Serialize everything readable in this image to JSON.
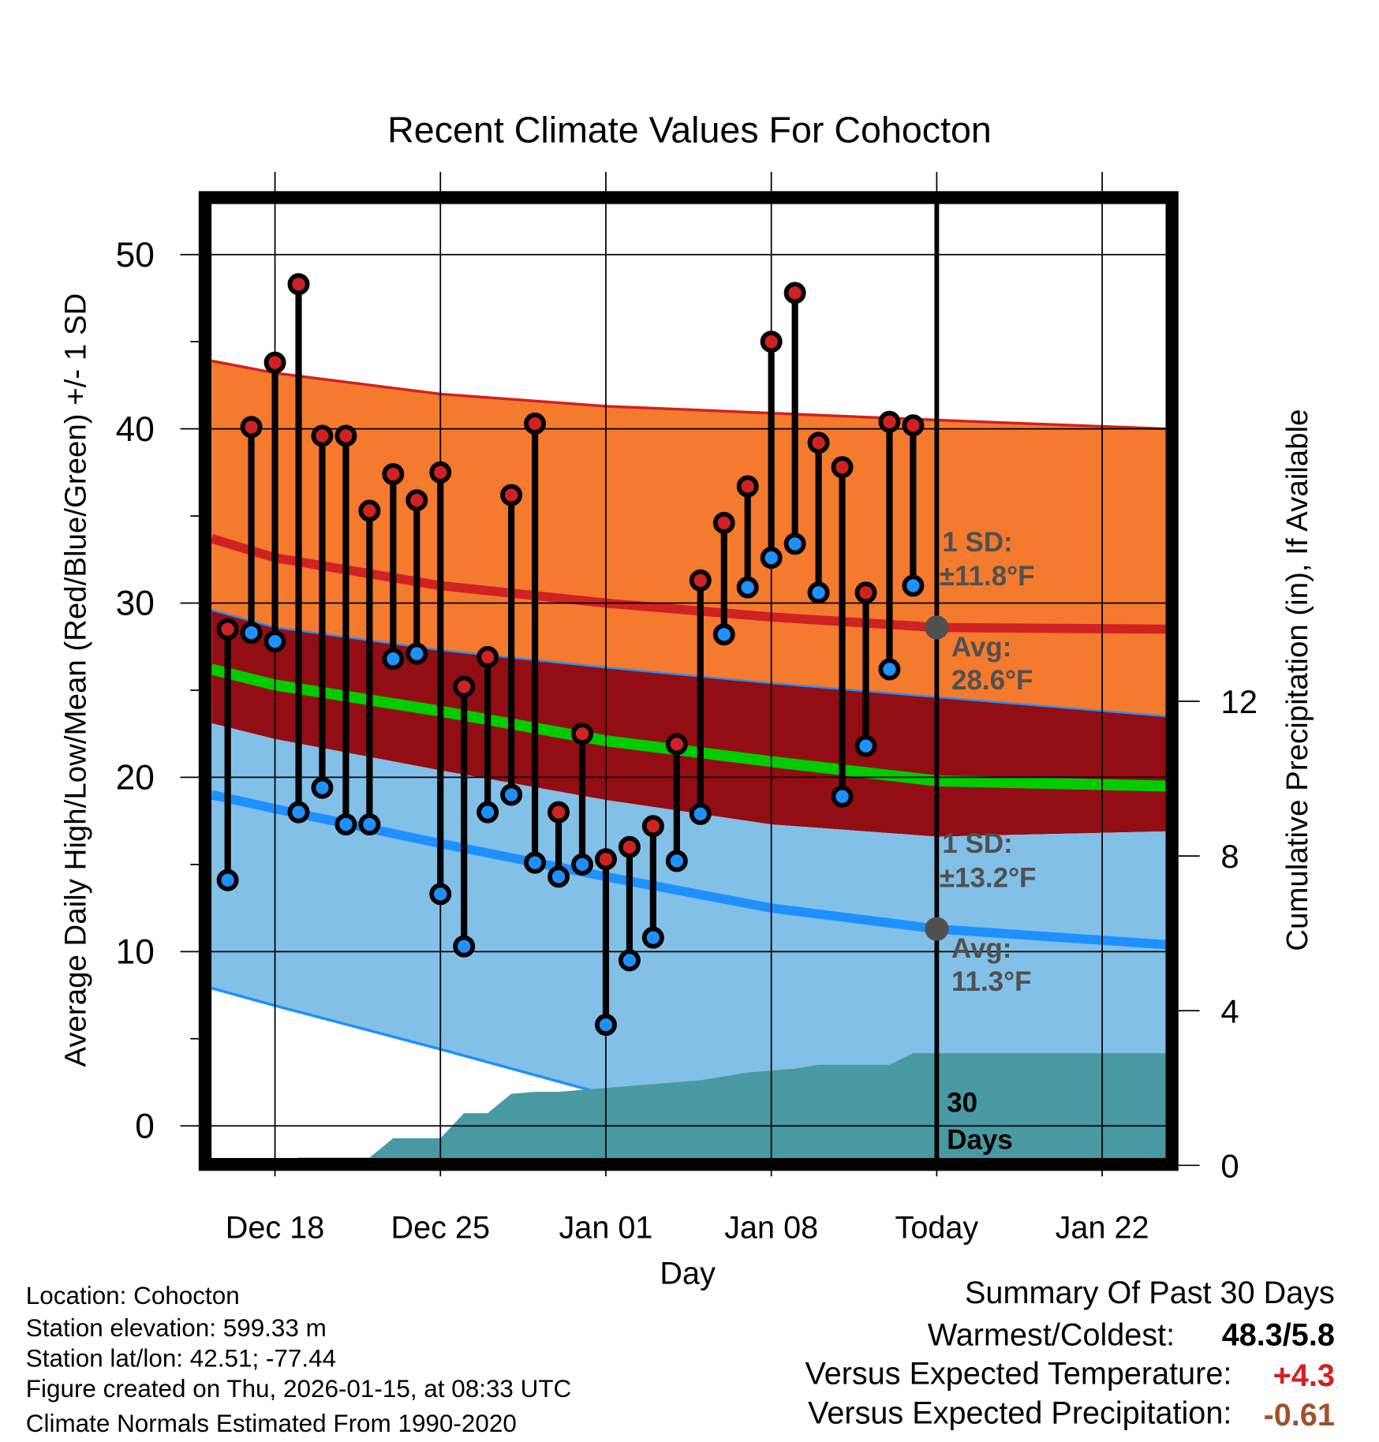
{
  "chart_data": {
    "type": "line",
    "title": "Recent Climate Values For Cohocton",
    "xlabel": "Day",
    "ylabel": "Average Daily High/Low/Mean (Red/Blue/Green) +/- 1 SD",
    "y2label": "Cumulative Precipitation (in), If Available",
    "ylim": [
      -1.85,
      52.9
    ],
    "y2lim": [
      0,
      12.5
    ],
    "yticks": [
      0,
      10,
      20,
      30,
      40,
      50
    ],
    "y2ticks": [
      0,
      4,
      8,
      12
    ],
    "xlim_days_from_dec18": [
      -2.68,
      37.7
    ],
    "xticks": [
      {
        "day": 0,
        "label": "Dec 18"
      },
      {
        "day": 7,
        "label": "Dec 25"
      },
      {
        "day": 14,
        "label": "Jan 01"
      },
      {
        "day": 21,
        "label": "Jan 08"
      },
      {
        "day": 28,
        "label": "Today"
      },
      {
        "day": 35,
        "label": "Jan 22"
      }
    ],
    "grid": true,
    "days": [
      "Dec 16",
      "Dec 17",
      "Dec 18",
      "Dec 19",
      "Dec 20",
      "Dec 21",
      "Dec 22",
      "Dec 23",
      "Dec 24",
      "Dec 25",
      "Dec 26",
      "Dec 27",
      "Dec 28",
      "Dec 29",
      "Dec 30",
      "Dec 31",
      "Jan 01",
      "Jan 02",
      "Jan 03",
      "Jan 04",
      "Jan 05",
      "Jan 06",
      "Jan 07",
      "Jan 08",
      "Jan 09",
      "Jan 10",
      "Jan 11",
      "Jan 12",
      "Jan 13",
      "Jan 14"
    ],
    "first_day_offset": -2,
    "series": [
      {
        "name": "Daily High",
        "values": [
          28.5,
          40.1,
          43.8,
          48.3,
          39.6,
          39.6,
          35.3,
          37.4,
          35.9,
          37.5,
          25.2,
          26.9,
          36.2,
          40.3,
          18.0,
          22.5,
          15.3,
          16.0,
          17.2,
          21.9,
          31.3,
          34.6,
          36.7,
          45.0,
          47.8,
          39.2,
          37.8,
          30.6,
          40.4,
          40.2
        ]
      },
      {
        "name": "Daily Low",
        "values": [
          14.1,
          28.3,
          27.8,
          18.0,
          19.4,
          17.3,
          17.3,
          26.8,
          27.1,
          13.3,
          10.3,
          18.0,
          19.0,
          15.1,
          14.3,
          15.0,
          5.8,
          9.5,
          10.8,
          15.2,
          17.9,
          28.2,
          30.9,
          32.6,
          33.4,
          30.6,
          18.9,
          21.8,
          26.2,
          31.0
        ]
      },
      {
        "name": "Cumulative Precipitation (in)",
        "values": [
          0,
          0,
          0,
          0.2,
          0.2,
          0.2,
          0.2,
          0.7,
          0.7,
          0.7,
          1.35,
          1.35,
          1.85,
          1.9,
          1.9,
          1.95,
          2.0,
          2.05,
          2.1,
          2.15,
          2.2,
          2.3,
          2.4,
          2.45,
          2.5,
          2.6,
          2.6,
          2.6,
          2.6,
          2.9
        ]
      }
    ],
    "normals": {
      "days_from_dec18": [
        -2.68,
        0,
        7,
        14,
        21,
        28,
        37.7
      ],
      "high_plus_sd": [
        43.9,
        43.2,
        42.0,
        41.3,
        40.9,
        40.5,
        40.0
      ],
      "high_avg": [
        33.7,
        32.6,
        31.0,
        30.0,
        29.2,
        28.6,
        28.5
      ],
      "high_minus_sd": [
        29.6,
        28.6,
        27.3,
        26.3,
        25.4,
        24.6,
        23.5
      ],
      "mean_avg": [
        26.2,
        25.3,
        23.8,
        22.1,
        20.9,
        19.8,
        19.5
      ],
      "low_plus_sd": [
        23.1,
        22.2,
        20.4,
        18.7,
        17.3,
        16.6,
        16.9
      ],
      "low_avg": [
        19.0,
        18.2,
        16.2,
        14.3,
        12.5,
        11.3,
        10.4
      ],
      "low_minus_sd": [
        7.9,
        6.9,
        4.4,
        1.8,
        -0.5,
        -1.9,
        -2.9
      ]
    },
    "annotations": {
      "high_sd_l1": "1 SD:",
      "high_sd_l2": "±11.8°F",
      "high_avg_l1": "Avg:",
      "high_avg_l2": "28.6°F",
      "low_sd_l1": "1 SD:",
      "low_sd_l2": "±13.2°F",
      "low_avg_l1": "Avg:",
      "low_avg_l2": "11.3°F",
      "today_high_avg": 28.6,
      "today_low_avg": 11.3,
      "days_l1": "30",
      "days_l2": "Days"
    },
    "colors": {
      "high_band": "#f47a2e",
      "mid_band": "#930d14",
      "low_band": "#82c0e7",
      "high_line": "#d02222",
      "mean_line": "#00cc00",
      "low_line": "#1e90ff",
      "precip": "#4899a1",
      "high_dot": "#d02222",
      "low_dot": "#1e90ff",
      "annot": "#505050"
    }
  },
  "footer": {
    "location": "Location: Cohocton",
    "elevation": "Station elevation: 599.33 m",
    "latlon": "Station lat/lon: 42.51; -77.44",
    "created": "Figure created on Thu, 2026-01-15, at 08:33 UTC",
    "normals": "Climate Normals Estimated From 1990-2020"
  },
  "summary": {
    "title": "Summary Of Past 30 Days",
    "warmest_label": "Warmest/Coldest:",
    "warmest_value": "48.3/5.8",
    "temp_label": "Versus Expected Temperature:",
    "temp_value": "+4.3",
    "temp_color": "#d02222",
    "precip_label": "Versus Expected Precipitation:",
    "precip_value": "-0.61",
    "precip_color": "#a0522d"
  }
}
